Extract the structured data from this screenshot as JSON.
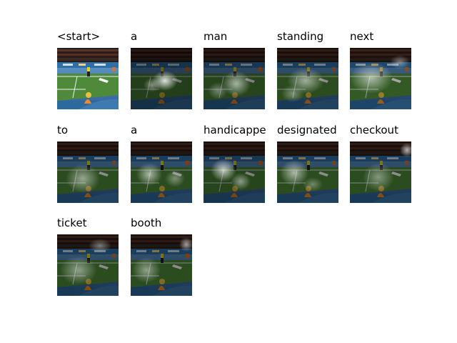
{
  "attention_steps": [
    {
      "word": "<start>"
    },
    {
      "word": "a"
    },
    {
      "word": "man"
    },
    {
      "word": "standing"
    },
    {
      "word": "next"
    },
    {
      "word": "to"
    },
    {
      "word": "a"
    },
    {
      "word": "handicappe"
    },
    {
      "word": "designated"
    },
    {
      "word": "checkout"
    },
    {
      "word": "ticket"
    },
    {
      "word": "booth"
    }
  ]
}
